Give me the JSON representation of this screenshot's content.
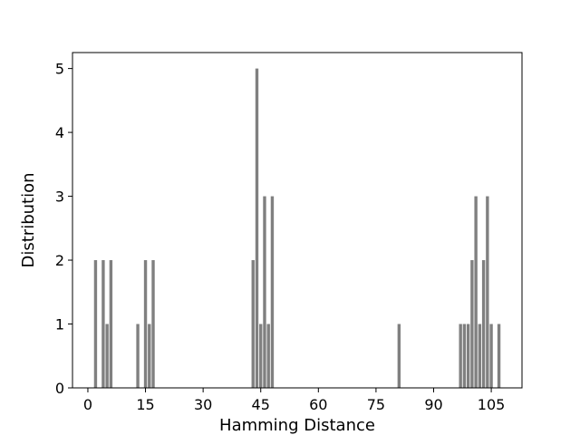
{
  "chart_data": {
    "type": "bar",
    "xlabel": "Hamming Distance",
    "ylabel": "Distribution",
    "x": [
      2,
      4,
      5,
      6,
      13,
      15,
      16,
      17,
      43,
      44,
      45,
      46,
      47,
      48,
      81,
      97,
      98,
      99,
      100,
      101,
      102,
      103,
      104,
      105,
      107
    ],
    "values": [
      2,
      2,
      1,
      2,
      1,
      2,
      1,
      2,
      2,
      5,
      1,
      3,
      1,
      3,
      1,
      1,
      1,
      1,
      2,
      3,
      1,
      2,
      3,
      1,
      1
    ],
    "xlim": [
      -4,
      113
    ],
    "ylim": [
      0,
      5.25
    ],
    "xticks": [
      0,
      15,
      30,
      45,
      60,
      75,
      90,
      105
    ],
    "yticks": [
      0,
      1,
      2,
      3,
      4,
      5
    ],
    "grid": false,
    "legend": "none",
    "bar_color": "#808080"
  }
}
